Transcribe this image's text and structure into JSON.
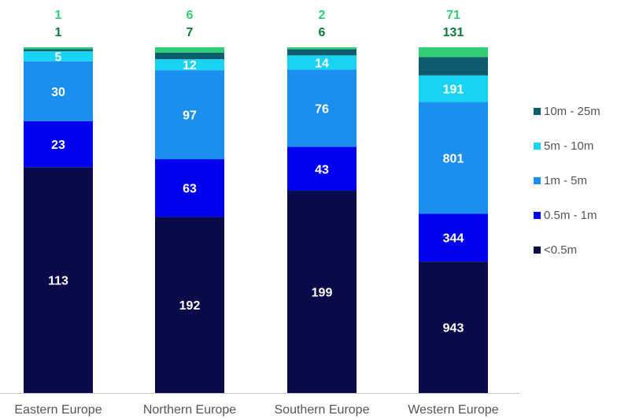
{
  "chart_data": {
    "type": "bar",
    "stacked": true,
    "categories": [
      "Eastern Europe",
      "Northern Europe",
      "Southern Europe",
      "Western Europe"
    ],
    "series": [
      {
        "name": "<0.5m",
        "color": "#0a0a4a",
        "values": [
          113,
          192,
          199,
          943
        ],
        "show_labels": true
      },
      {
        "name": "0.5m - 1m",
        "color": "#0000ee",
        "values": [
          23,
          63,
          43,
          344
        ],
        "show_labels": true
      },
      {
        "name": "1m - 5m",
        "color": "#1a8fef",
        "values": [
          30,
          97,
          76,
          801
        ],
        "show_labels": true
      },
      {
        "name": "5m - 10m",
        "color": "#19d3f3",
        "values": [
          5,
          12,
          14,
          191
        ],
        "show_labels": true
      },
      {
        "name": "10m - 25m",
        "color": "#0d5c6e",
        "values": [
          1,
          7,
          6,
          131
        ],
        "show_labels": false,
        "label_above": true,
        "label_color": "#0b7a3b"
      },
      {
        "name": "",
        "color": "#33cc77",
        "values": [
          1,
          6,
          2,
          71
        ],
        "show_labels": false,
        "label_above": true,
        "label_color": "#33cc77"
      }
    ],
    "legend": {
      "placement": "right",
      "entries": [
        "10m - 25m",
        "5m - 10m",
        "1m - 5m",
        "0.5m - 1m",
        "<0.5m"
      ]
    },
    "axis_color": "#c8c8c8",
    "grid": false
  }
}
